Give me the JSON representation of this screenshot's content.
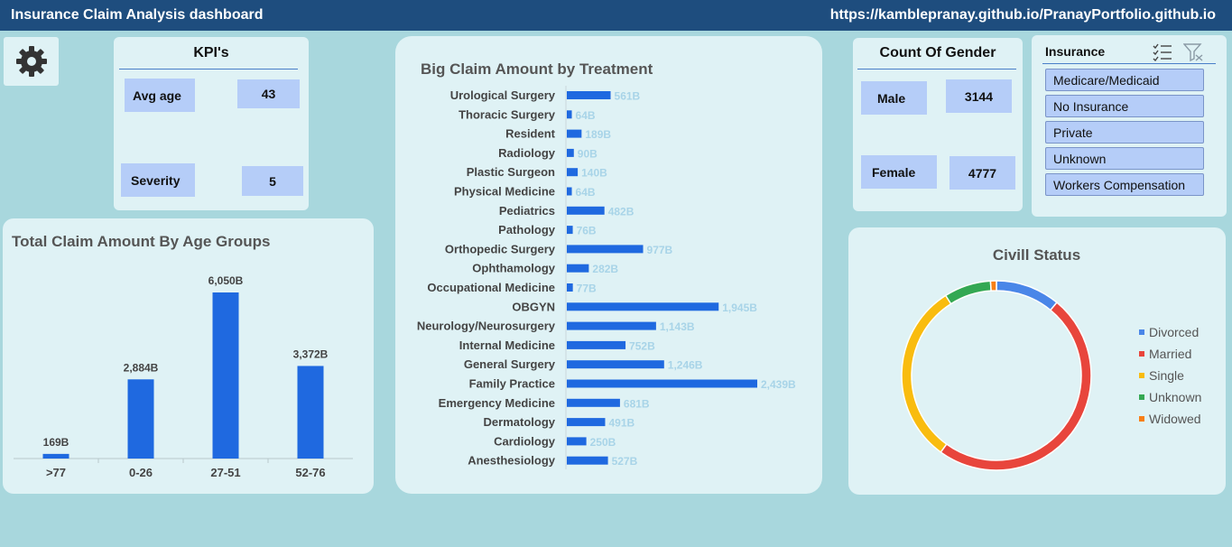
{
  "header": {
    "title": "Insurance Claim Analysis dashboard",
    "url": "https://kamblepranay.github.io/PranayPortfolio.github.io"
  },
  "icons": {
    "settings": "gear-icon",
    "multi_select": "multi-select-icon",
    "clear_filter": "clear-filter-icon"
  },
  "kpis": {
    "title": "KPI's",
    "avg_age_label": "Avg age",
    "avg_age_value": "43",
    "severity_label": "Severity",
    "severity_value": "5"
  },
  "gender": {
    "title": "Count Of Gender",
    "male_label": "Male",
    "male_value": "3144",
    "female_label": "Female",
    "female_value": "4777"
  },
  "insurance": {
    "title": "Insurance",
    "items": [
      "Medicare/Medicaid",
      "No Insurance",
      "Private",
      "Unknown",
      "Workers Compensation"
    ]
  },
  "chart_data": [
    {
      "type": "bar",
      "title": "Total Claim Amount By Age Groups",
      "categories": [
        ">77",
        "0-26",
        "27-51",
        "52-76"
      ],
      "values": [
        169,
        2884,
        6050,
        3372
      ],
      "data_labels": [
        "169B",
        "2,884B",
        "6,050B",
        "3,372B"
      ],
      "ylim": [
        0,
        6050
      ],
      "color": "#1f69e0",
      "grid": false
    },
    {
      "type": "bar",
      "orientation": "horizontal",
      "title": "Big Claim Amount by Treatment",
      "categories": [
        "Urological Surgery",
        "Thoracic Surgery",
        "Resident",
        "Radiology",
        "Plastic Surgeon",
        "Physical Medicine",
        "Pediatrics",
        "Pathology",
        "Orthopedic Surgery",
        "Ophthamology",
        "Occupational Medicine",
        "OBGYN",
        "Neurology/Neurosurgery",
        "Internal Medicine",
        "General Surgery",
        "Family Practice",
        "Emergency Medicine",
        "Dermatology",
        "Cardiology",
        "Anesthesiology"
      ],
      "values": [
        561,
        64,
        189,
        90,
        140,
        64,
        482,
        76,
        977,
        282,
        77,
        1945,
        1143,
        752,
        1246,
        2439,
        681,
        491,
        250,
        527
      ],
      "data_labels": [
        "561B",
        "64B",
        "189B",
        "90B",
        "140B",
        "64B",
        "482B",
        "76B",
        "977B",
        "282B",
        "77B",
        "1,945B",
        "1,143B",
        "752B",
        "1,246B",
        "2,439B",
        "681B",
        "491B",
        "250B",
        "527B"
      ],
      "color": "#1f69e0",
      "grid": false
    },
    {
      "type": "pie",
      "subtype": "donut",
      "title": "Civill Status",
      "categories": [
        "Divorced",
        "Married",
        "Single",
        "Unknown",
        "Widowed"
      ],
      "values": [
        11,
        49,
        31,
        8,
        1
      ],
      "colors": [
        "#4a86e8",
        "#e8453c",
        "#f9bc0f",
        "#34a853",
        "#f87f17"
      ],
      "legend": "right"
    }
  ]
}
